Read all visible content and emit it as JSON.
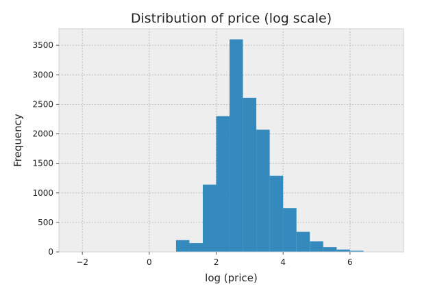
{
  "chart_data": {
    "type": "bar",
    "title": "Distribution of price (log scale)",
    "xlabel": "log (price)",
    "ylabel": "Frequency",
    "xlim": [
      -2.7,
      7.6
    ],
    "ylim": [
      0,
      3780
    ],
    "x_ticks": [
      -2,
      0,
      2,
      4,
      6
    ],
    "y_ticks": [
      0,
      500,
      1000,
      1500,
      2000,
      2500,
      3000,
      3500
    ],
    "grid": true,
    "bar_color": "#348abd",
    "background_color": "#eeeeee",
    "bins": [
      {
        "x0": 0.8,
        "x1": 1.2,
        "count": 200
      },
      {
        "x0": 1.2,
        "x1": 1.6,
        "count": 150
      },
      {
        "x0": 1.6,
        "x1": 2.0,
        "count": 1140
      },
      {
        "x0": 2.0,
        "x1": 2.4,
        "count": 2300
      },
      {
        "x0": 2.4,
        "x1": 2.8,
        "count": 3600
      },
      {
        "x0": 2.8,
        "x1": 3.2,
        "count": 2610
      },
      {
        "x0": 3.2,
        "x1": 3.6,
        "count": 2070
      },
      {
        "x0": 3.6,
        "x1": 4.0,
        "count": 1290
      },
      {
        "x0": 4.0,
        "x1": 4.4,
        "count": 740
      },
      {
        "x0": 4.4,
        "x1": 4.8,
        "count": 340
      },
      {
        "x0": 4.8,
        "x1": 5.2,
        "count": 180
      },
      {
        "x0": 5.2,
        "x1": 5.6,
        "count": 80
      },
      {
        "x0": 5.6,
        "x1": 6.0,
        "count": 40
      },
      {
        "x0": 6.0,
        "x1": 6.4,
        "count": 20
      }
    ]
  }
}
